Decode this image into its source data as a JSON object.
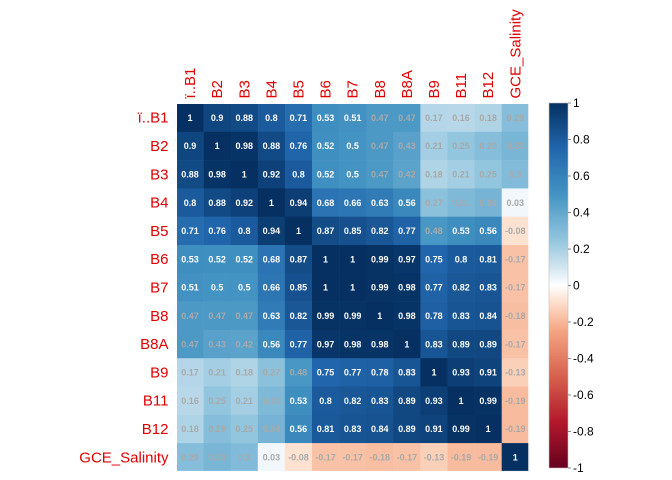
{
  "chart_data": {
    "type": "heatmap",
    "variables": [
      "ï..B1",
      "B2",
      "B3",
      "B4",
      "B5",
      "B6",
      "B7",
      "B8",
      "B8A",
      "B9",
      "B11",
      "B12",
      "GCE_Salinity"
    ],
    "matrix": [
      [
        1,
        0.9,
        0.88,
        0.8,
        0.71,
        0.53,
        0.51,
        0.47,
        0.47,
        0.17,
        0.16,
        0.18,
        0.29
      ],
      [
        0.9,
        1,
        0.98,
        0.88,
        0.76,
        0.52,
        0.5,
        0.47,
        0.43,
        0.21,
        0.25,
        0.29,
        0.33
      ],
      [
        0.88,
        0.98,
        1,
        0.92,
        0.8,
        0.52,
        0.5,
        0.47,
        0.42,
        0.18,
        0.21,
        0.25,
        0.3
      ],
      [
        0.8,
        0.88,
        0.92,
        1,
        0.94,
        0.68,
        0.66,
        0.63,
        0.56,
        0.27,
        0.31,
        0.34,
        0.03
      ],
      [
        0.71,
        0.76,
        0.8,
        0.94,
        1,
        0.87,
        0.85,
        0.82,
        0.77,
        0.48,
        0.53,
        0.56,
        -0.08
      ],
      [
        0.53,
        0.52,
        0.52,
        0.68,
        0.87,
        1,
        1,
        0.99,
        0.97,
        0.75,
        0.8,
        0.81,
        -0.17
      ],
      [
        0.51,
        0.5,
        0.5,
        0.66,
        0.85,
        1,
        1,
        0.99,
        0.98,
        0.77,
        0.82,
        0.83,
        -0.17
      ],
      [
        0.47,
        0.47,
        0.47,
        0.63,
        0.82,
        0.99,
        0.99,
        1,
        0.98,
        0.78,
        0.83,
        0.84,
        -0.18
      ],
      [
        0.47,
        0.43,
        0.42,
        0.56,
        0.77,
        0.97,
        0.98,
        0.98,
        1,
        0.83,
        0.89,
        0.89,
        -0.17
      ],
      [
        0.17,
        0.21,
        0.18,
        0.27,
        0.48,
        0.75,
        0.77,
        0.78,
        0.83,
        1,
        0.93,
        0.91,
        -0.13
      ],
      [
        0.16,
        0.25,
        0.21,
        0.31,
        0.53,
        0.8,
        0.82,
        0.83,
        0.89,
        0.93,
        1,
        0.99,
        -0.19
      ],
      [
        0.18,
        0.29,
        0.25,
        0.34,
        0.56,
        0.81,
        0.83,
        0.84,
        0.89,
        0.91,
        0.99,
        1,
        -0.19
      ],
      [
        0.29,
        0.33,
        0.3,
        0.03,
        -0.08,
        -0.17,
        -0.17,
        -0.18,
        -0.17,
        -0.13,
        -0.19,
        -0.19,
        1
      ]
    ],
    "color_range": [
      -1,
      1
    ],
    "legend_ticks": [
      "1",
      "0.8",
      "0.6",
      "0.4",
      "0.2",
      "0",
      "-0.2",
      "-0.4",
      "-0.6",
      "-0.8",
      "-1"
    ],
    "legend_placement": "right",
    "colors": {
      "negative_end": "#67001f",
      "neutral": "#ffffff",
      "positive_end": "#053061",
      "label_color": "#e00000"
    }
  }
}
